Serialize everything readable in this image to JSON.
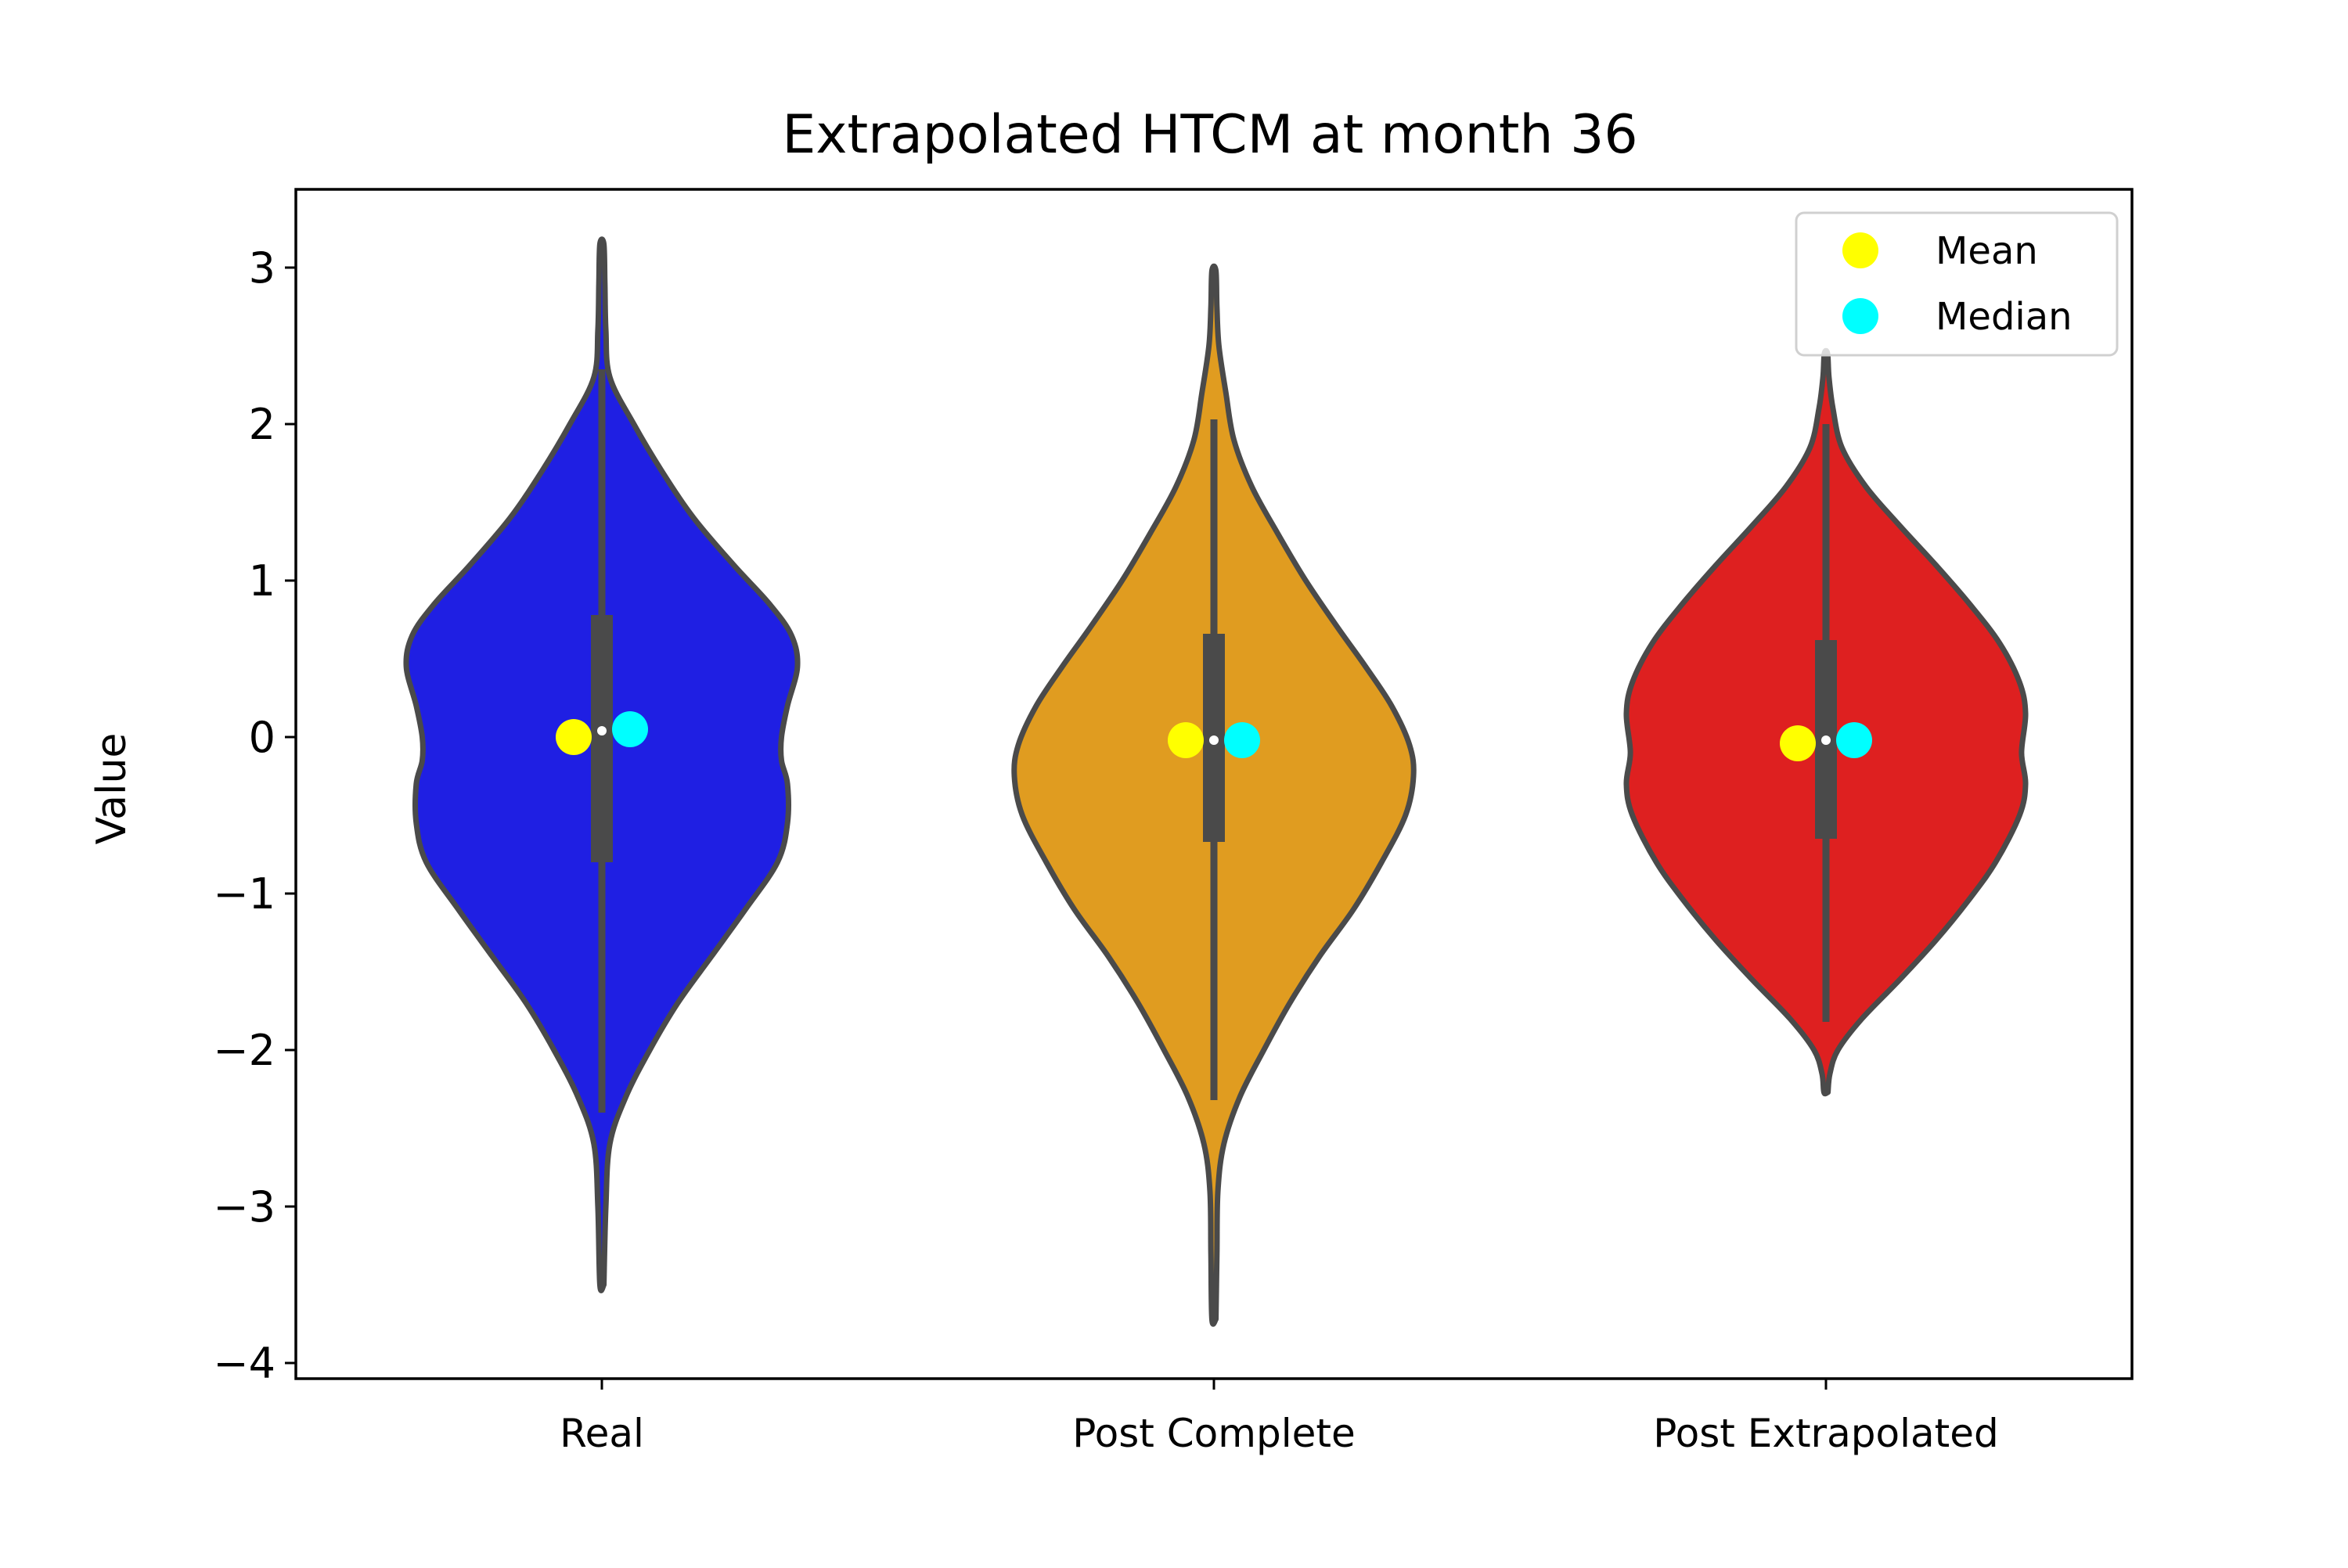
{
  "chart_data": {
    "type": "violin",
    "title": "Extrapolated HTCM at month 36",
    "xlabel": "",
    "ylabel": "Value",
    "ylim": [
      -4.1,
      3.5
    ],
    "yticks": [
      3,
      2,
      1,
      0,
      -1,
      -2,
      -3,
      -4
    ],
    "ytick_labels": [
      "3",
      "2",
      "1",
      "0",
      "−1",
      "−2",
      "−3",
      "−4"
    ],
    "grid": false,
    "legend_position": "top-right",
    "legend": [
      {
        "label": "Mean",
        "color": "#ffff00"
      },
      {
        "label": "Median",
        "color": "#00ffff"
      }
    ],
    "categories": [
      "Real",
      "Post Complete",
      "Post Extrapolated"
    ],
    "series": [
      {
        "category": "Real",
        "color": "#1f1fe3",
        "min": -3.5,
        "max": 3.15,
        "q1": -0.8,
        "median": 0.04,
        "q3": 0.78,
        "whisker_low": -2.4,
        "whisker_high": 2.35,
        "mean": 0.0,
        "median_marker": 0.05,
        "density": [
          [
            -3.5,
            0.01
          ],
          [
            -3.0,
            0.02
          ],
          [
            -2.6,
            0.04
          ],
          [
            -2.3,
            0.12
          ],
          [
            -2.0,
            0.24
          ],
          [
            -1.7,
            0.38
          ],
          [
            -1.4,
            0.55
          ],
          [
            -1.1,
            0.72
          ],
          [
            -0.8,
            0.88
          ],
          [
            -0.55,
            0.93
          ],
          [
            -0.3,
            0.93
          ],
          [
            -0.15,
            0.9
          ],
          [
            0.0,
            0.9
          ],
          [
            0.2,
            0.93
          ],
          [
            0.45,
            0.98
          ],
          [
            0.65,
            0.95
          ],
          [
            0.85,
            0.84
          ],
          [
            1.1,
            0.66
          ],
          [
            1.4,
            0.46
          ],
          [
            1.7,
            0.3
          ],
          [
            2.0,
            0.16
          ],
          [
            2.3,
            0.04
          ],
          [
            2.6,
            0.02
          ],
          [
            2.9,
            0.015
          ],
          [
            3.15,
            0.01
          ]
        ]
      },
      {
        "category": "Post Complete",
        "color": "#e09c20",
        "min": -3.72,
        "max": 2.98,
        "q1": -0.67,
        "median": -0.02,
        "q3": 0.66,
        "whisker_low": -2.32,
        "whisker_high": 2.03,
        "mean": -0.02,
        "median_marker": -0.02,
        "density": [
          [
            -3.72,
            0.01
          ],
          [
            -3.3,
            0.015
          ],
          [
            -2.9,
            0.02
          ],
          [
            -2.6,
            0.05
          ],
          [
            -2.3,
            0.13
          ],
          [
            -2.0,
            0.25
          ],
          [
            -1.7,
            0.38
          ],
          [
            -1.4,
            0.53
          ],
          [
            -1.1,
            0.7
          ],
          [
            -0.8,
            0.84
          ],
          [
            -0.5,
            0.96
          ],
          [
            -0.25,
            1.0
          ],
          [
            -0.05,
            0.98
          ],
          [
            0.2,
            0.89
          ],
          [
            0.45,
            0.76
          ],
          [
            0.7,
            0.62
          ],
          [
            1.0,
            0.46
          ],
          [
            1.3,
            0.32
          ],
          [
            1.6,
            0.19
          ],
          [
            1.9,
            0.1
          ],
          [
            2.2,
            0.06
          ],
          [
            2.5,
            0.025
          ],
          [
            2.75,
            0.015
          ],
          [
            2.98,
            0.01
          ]
        ]
      },
      {
        "category": "Post Extrapolated",
        "color": "#de2020",
        "min": -2.27,
        "max": 2.45,
        "q1": -0.65,
        "median": -0.02,
        "q3": 0.62,
        "whisker_low": -1.82,
        "whisker_high": 2.0,
        "mean": -0.04,
        "median_marker": -0.02,
        "density": [
          [
            -2.27,
            0.01
          ],
          [
            -2.15,
            0.02
          ],
          [
            -2.0,
            0.06
          ],
          [
            -1.8,
            0.18
          ],
          [
            -1.55,
            0.37
          ],
          [
            -1.3,
            0.55
          ],
          [
            -1.05,
            0.71
          ],
          [
            -0.8,
            0.85
          ],
          [
            -0.5,
            0.97
          ],
          [
            -0.3,
            1.0
          ],
          [
            -0.1,
            0.98
          ],
          [
            0.15,
            1.0
          ],
          [
            0.35,
            0.97
          ],
          [
            0.6,
            0.87
          ],
          [
            0.85,
            0.72
          ],
          [
            1.1,
            0.55
          ],
          [
            1.35,
            0.37
          ],
          [
            1.6,
            0.2
          ],
          [
            1.85,
            0.08
          ],
          [
            2.1,
            0.035
          ],
          [
            2.3,
            0.015
          ],
          [
            2.45,
            0.008
          ]
        ]
      }
    ]
  }
}
